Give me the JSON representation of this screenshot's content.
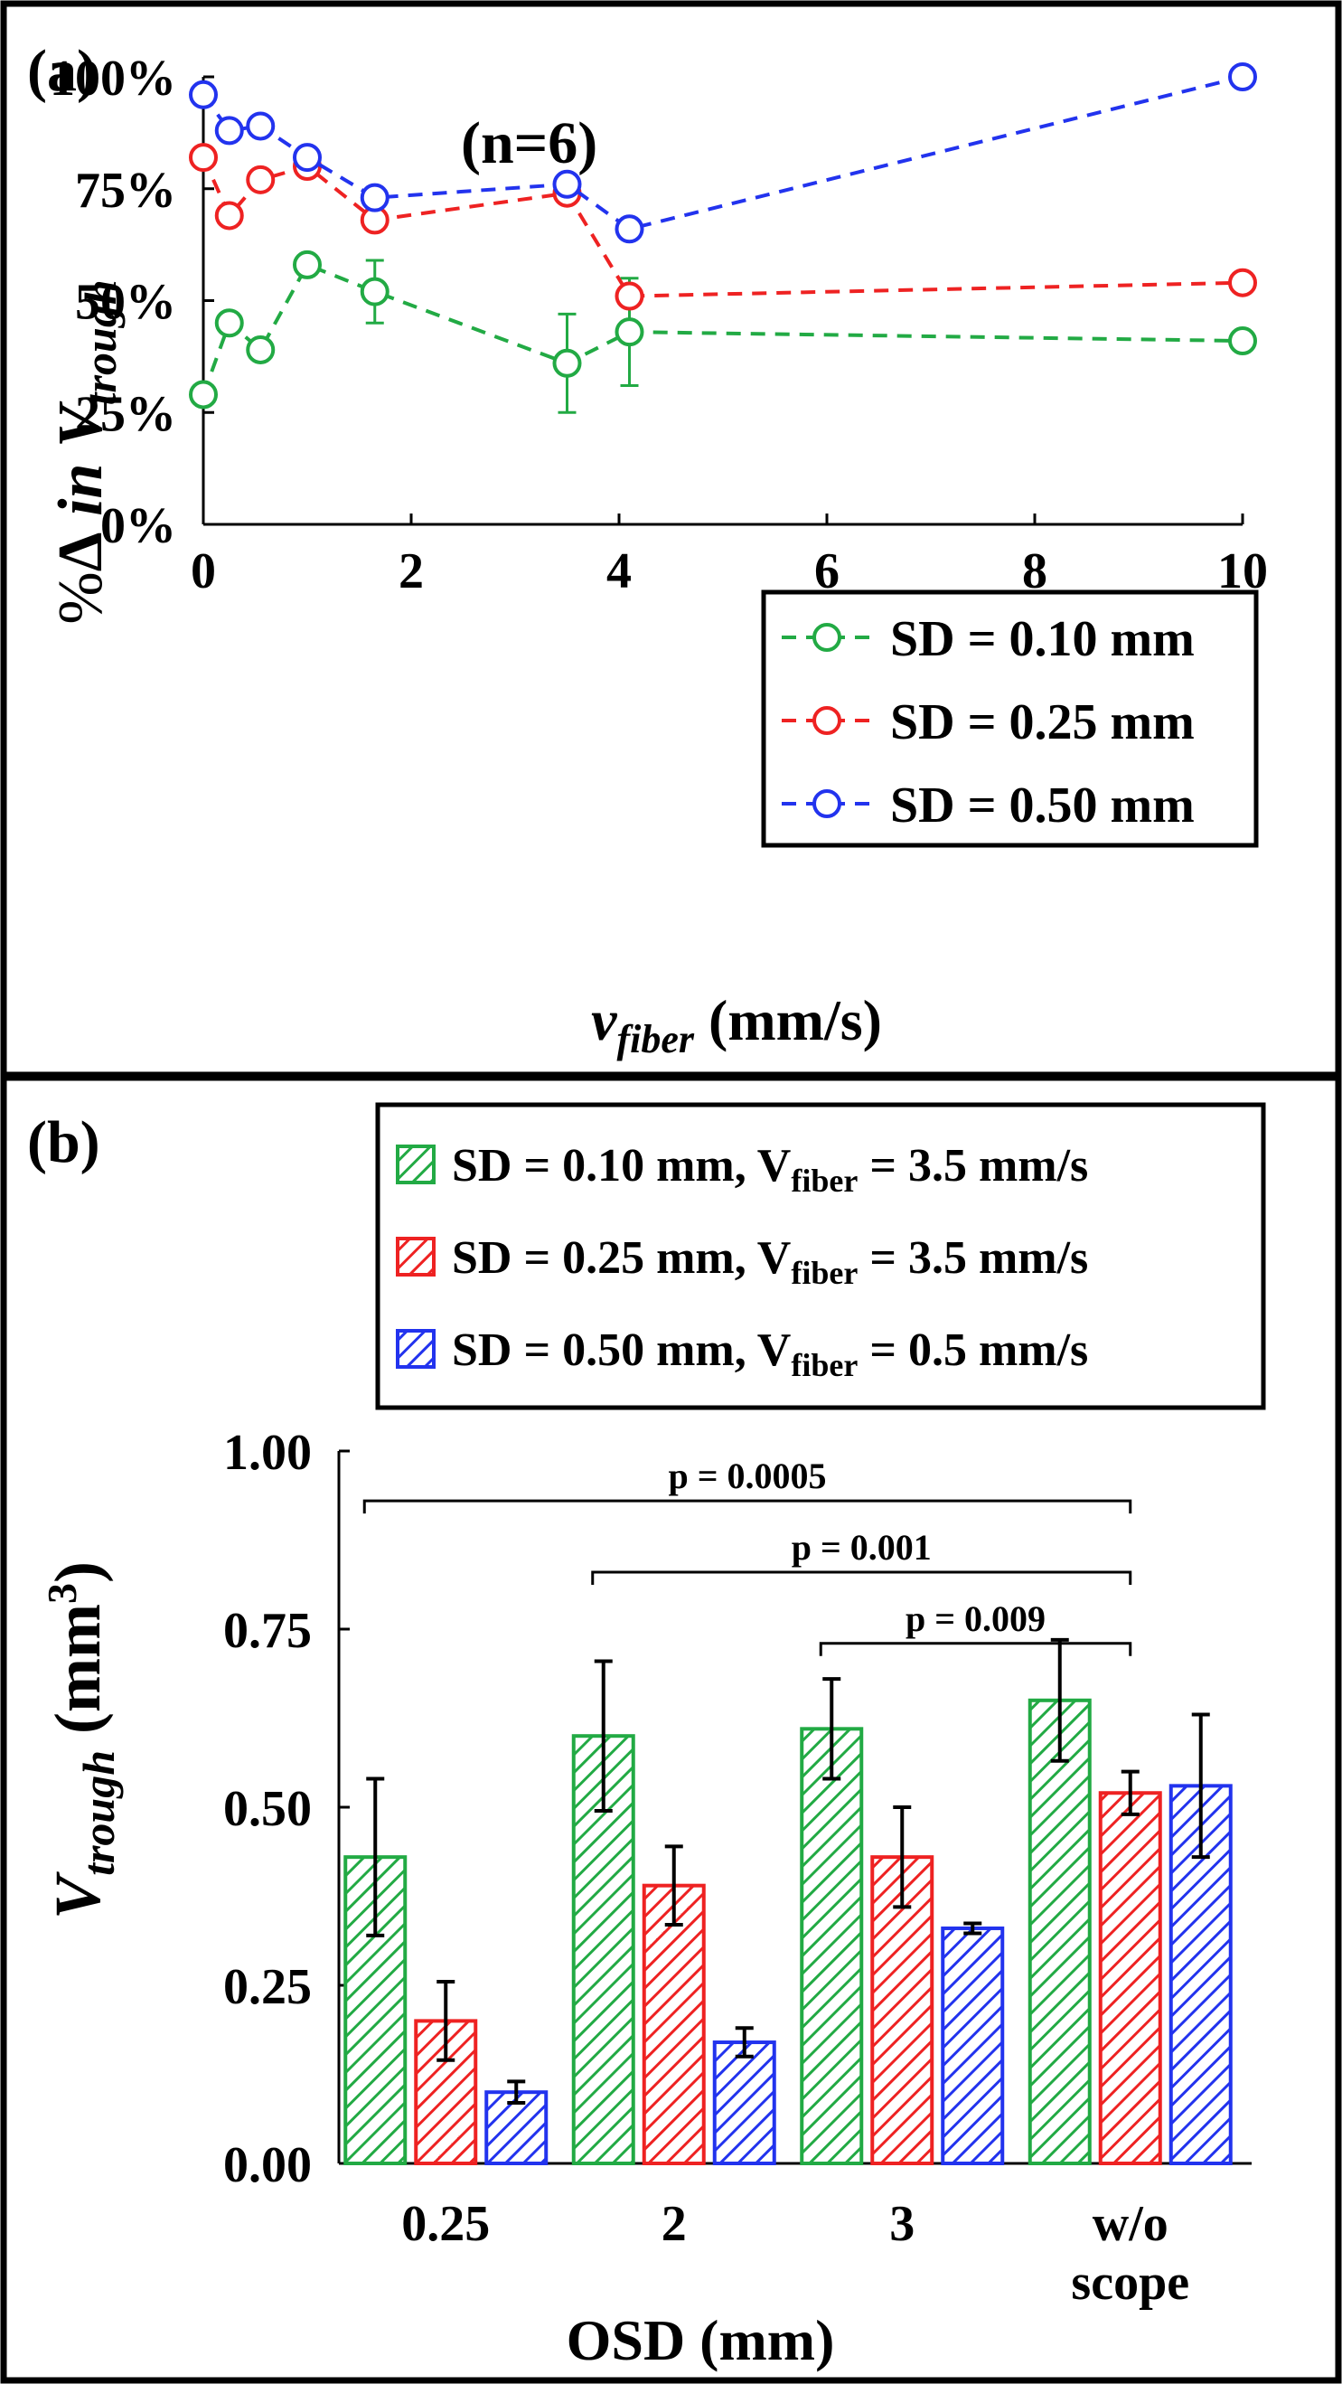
{
  "colors": {
    "green": "#22AA44",
    "red": "#EE2222",
    "blue": "#2233EE"
  },
  "chart_data": [
    {
      "type": "line",
      "panel_label": "(a)",
      "annotation": "(n=6)",
      "xlabel": {
        "main": "v",
        "sub": "fiber",
        "units": " (mm/s)"
      },
      "ylabel": {
        "prefix": "%",
        "delta": "Δ",
        "in": " in ",
        "v": "V",
        "sub": "trough"
      },
      "xlim": [
        0,
        10
      ],
      "ylim": [
        0,
        100
      ],
      "x_ticks": [
        "0",
        "2",
        "4",
        "6",
        "8",
        "10"
      ],
      "y_ticks": [
        "0%",
        "25%",
        "50%",
        "75%",
        "100%"
      ],
      "grid": false,
      "legend_position": "bottom-right",
      "series": [
        {
          "name": "SD = 0.10 mm",
          "color": "#22AA44",
          "x": [
            0,
            0.25,
            0.55,
            1.0,
            1.65,
            3.5,
            4.1,
            10
          ],
          "y": [
            29,
            45,
            39,
            58,
            52,
            36,
            43,
            41
          ],
          "err": [
            0,
            0,
            0,
            0,
            7,
            11,
            12,
            0
          ]
        },
        {
          "name": "SD = 0.25 mm",
          "color": "#EE2222",
          "x": [
            0,
            0.25,
            0.55,
            1.0,
            1.65,
            3.5,
            4.1,
            10
          ],
          "y": [
            82,
            69,
            77,
            80,
            68,
            74,
            51,
            54
          ],
          "err": [
            0,
            0,
            0,
            0,
            0,
            0,
            0,
            0
          ]
        },
        {
          "name": "SD = 0.50 mm",
          "color": "#2233EE",
          "x": [
            0,
            0.25,
            0.55,
            1.0,
            1.65,
            3.5,
            4.1,
            10
          ],
          "y": [
            96,
            88,
            89,
            82,
            73,
            76,
            66,
            100
          ],
          "err": [
            0,
            0,
            0,
            0,
            0,
            0,
            0,
            0
          ]
        }
      ]
    },
    {
      "type": "bar",
      "panel_label": "(b)",
      "xlabel": "OSD (mm)",
      "ylabel": {
        "v": "V",
        "sub": "trough",
        "units": " (mm",
        "sup": "3",
        "close": ")"
      },
      "ylim": [
        0,
        1
      ],
      "y_ticks": [
        "0.00",
        "0.25",
        "0.50",
        "0.75",
        "1.00"
      ],
      "categories": [
        [
          "0.25"
        ],
        [
          "2"
        ],
        [
          "3"
        ],
        [
          "w/o",
          "scope"
        ]
      ],
      "legend_position": "top",
      "series": [
        {
          "name_main": "SD = 0.10 mm, V",
          "name_sub": "fiber",
          "name_tail": " = 3.5 mm/s",
          "color": "#22AA44",
          "values": [
            0.43,
            0.6,
            0.61,
            0.65
          ],
          "err": [
            0.11,
            0.105,
            0.07,
            0.085
          ]
        },
        {
          "name_main": "SD = 0.25 mm, V",
          "name_sub": "fiber",
          "name_tail": " = 3.5 mm/s",
          "color": "#EE2222",
          "values": [
            0.2,
            0.39,
            0.43,
            0.52
          ],
          "err": [
            0.055,
            0.055,
            0.07,
            0.03
          ]
        },
        {
          "name_main": "SD = 0.50 mm, V",
          "name_sub": "fiber",
          "name_tail": " = 0.5 mm/s",
          "color": "#2233EE",
          "values": [
            0.1,
            0.17,
            0.33,
            0.53
          ],
          "err": [
            0.015,
            0.02,
            0.007,
            0.1
          ]
        }
      ],
      "significance": [
        {
          "label": "p = 0.0005",
          "from": 0,
          "to": 3
        },
        {
          "label": "p = 0.001",
          "from": 1,
          "to": 3
        },
        {
          "label": "p = 0.009",
          "from": 2,
          "to": 3
        }
      ]
    }
  ]
}
